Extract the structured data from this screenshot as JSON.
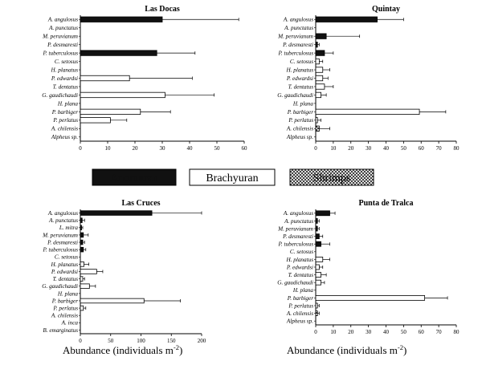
{
  "legend": [
    {
      "label": "Anomuran",
      "fill": "#111111"
    },
    {
      "label": "Brachyuran",
      "fill": "#ffffff"
    },
    {
      "label": "Shrimps",
      "fill": "hatch"
    }
  ],
  "xlabel": "Abundance (individuals m",
  "xlabel_sup": "-2",
  "xlabel_close": ")",
  "colors": {
    "anomuran": "#111111",
    "brachyuran": "#ffffff",
    "shrimps": "crosshatch",
    "axis": "#000000"
  },
  "chart_data": [
    {
      "type": "bar",
      "orientation": "horizontal",
      "title": "Las Docas",
      "xlim": [
        0,
        60
      ],
      "xticks": [
        0,
        10,
        20,
        30,
        40,
        50,
        60
      ],
      "categories": [
        "A. angulosus",
        "A. punctatus",
        "M. peruvianum",
        "P. desmaresti",
        "P. tuberculosus",
        "C. setosus",
        "H. planatus",
        "P. edwardsi",
        "T. dentatus",
        "G. gaudichaudi",
        "H. plana",
        "P. barbiger",
        "P. perlatus",
        "A. chilensis",
        "Alpheus sp."
      ],
      "groups": [
        "Anomuran",
        "Anomuran",
        "Anomuran",
        "Anomuran",
        "Anomuran",
        "Brachyuran",
        "Brachyuran",
        "Brachyuran",
        "Brachyuran",
        "Brachyuran",
        "Brachyuran",
        "Brachyuran",
        "Brachyuran",
        "Shrimps",
        "Shrimps"
      ],
      "values": [
        30,
        0,
        0,
        0,
        28,
        0,
        0,
        18,
        0,
        31,
        0,
        22,
        11,
        0,
        0
      ],
      "errors": [
        28,
        0,
        0,
        0,
        14,
        0,
        0,
        23,
        0,
        18,
        0,
        11,
        6,
        0,
        0
      ]
    },
    {
      "type": "bar",
      "orientation": "horizontal",
      "title": "Quintay",
      "xlim": [
        0,
        80
      ],
      "xticks": [
        0,
        10,
        20,
        30,
        40,
        50,
        60,
        70,
        80
      ],
      "categories": [
        "A. angulosus",
        "A. punctatus",
        "M. peruvianum",
        "P. desmaresti",
        "P. tuberculosus",
        "C. setosus",
        "H. planatus",
        "P. edwardsi",
        "T. dentatus",
        "G. gaudichaudi",
        "H. plana",
        "P. barbiger",
        "P. perlatus",
        "A. chilensis",
        "Alpheus sp."
      ],
      "groups": [
        "Anomuran",
        "Anomuran",
        "Anomuran",
        "Anomuran",
        "Anomuran",
        "Brachyuran",
        "Brachyuran",
        "Brachyuran",
        "Brachyuran",
        "Brachyuran",
        "Brachyuran",
        "Brachyuran",
        "Brachyuran",
        "Shrimps",
        "Shrimps"
      ],
      "values": [
        35,
        0,
        6,
        1,
        5,
        2,
        4,
        4,
        5,
        3,
        0,
        59,
        1,
        2,
        0
      ],
      "errors": [
        15,
        0,
        19,
        1,
        5,
        2,
        4,
        3,
        5,
        3,
        0,
        15,
        2,
        6,
        0
      ]
    },
    {
      "type": "bar",
      "orientation": "horizontal",
      "title": "Las Cruces",
      "xlim": [
        0,
        200
      ],
      "xticks": [
        0,
        50,
        100,
        150,
        200
      ],
      "categories": [
        "A. angulosus",
        "A. punctatus",
        "L. mitra",
        "M. peruvianum",
        "P. desmaresti",
        "P. tuberculosus",
        "C. setosus",
        "H. planatus",
        "P. edwardsi",
        "T. dentatus",
        "G. gaudichaudi",
        "H. plana",
        "P. barbiger",
        "P. perlatus",
        "A. chilensis",
        "A. inca",
        "B. emarginatus"
      ],
      "groups": [
        "Anomuran",
        "Anomuran",
        "Anomuran",
        "Anomuran",
        "Anomuran",
        "Anomuran",
        "Brachyuran",
        "Brachyuran",
        "Brachyuran",
        "Brachyuran",
        "Brachyuran",
        "Brachyuran",
        "Brachyuran",
        "Brachyuran",
        "Shrimps",
        "Shrimps",
        "Shrimps"
      ],
      "values": [
        118,
        3,
        2,
        5,
        4,
        5,
        0,
        6,
        27,
        4,
        15,
        0,
        105,
        5,
        0,
        0,
        0
      ],
      "errors": [
        82,
        4,
        2,
        8,
        3,
        4,
        0,
        8,
        10,
        3,
        10,
        0,
        60,
        4,
        0,
        0,
        0
      ]
    },
    {
      "type": "bar",
      "orientation": "horizontal",
      "title": "Punta de Tralca",
      "xlim": [
        0,
        80
      ],
      "xticks": [
        0,
        10,
        20,
        30,
        40,
        50,
        60,
        70,
        80
      ],
      "categories": [
        "A. angulosus",
        "A. punctatus",
        "M. peruvianum",
        "P. desmaresti",
        "P. tuberculosus",
        "C. setosus",
        "H. planatus",
        "P. edwardsi",
        "T. dentatus",
        "G. gaudichaudi",
        "H. plana",
        "P. barbiger",
        "P. perlatus",
        "A. chilensis",
        "Alpheus sp."
      ],
      "groups": [
        "Anomuran",
        "Anomuran",
        "Anomuran",
        "Anomuran",
        "Anomuran",
        "Brachyuran",
        "Brachyuran",
        "Brachyuran",
        "Brachyuran",
        "Brachyuran",
        "Brachyuran",
        "Brachyuran",
        "Brachyuran",
        "Shrimps",
        "Shrimps"
      ],
      "values": [
        8,
        1,
        1,
        2,
        3,
        0,
        4,
        2,
        3,
        3,
        0,
        62,
        1,
        1,
        0
      ],
      "errors": [
        3,
        1,
        1,
        2,
        5,
        0,
        4,
        2,
        3,
        2,
        0,
        13,
        1,
        1,
        0
      ]
    }
  ]
}
